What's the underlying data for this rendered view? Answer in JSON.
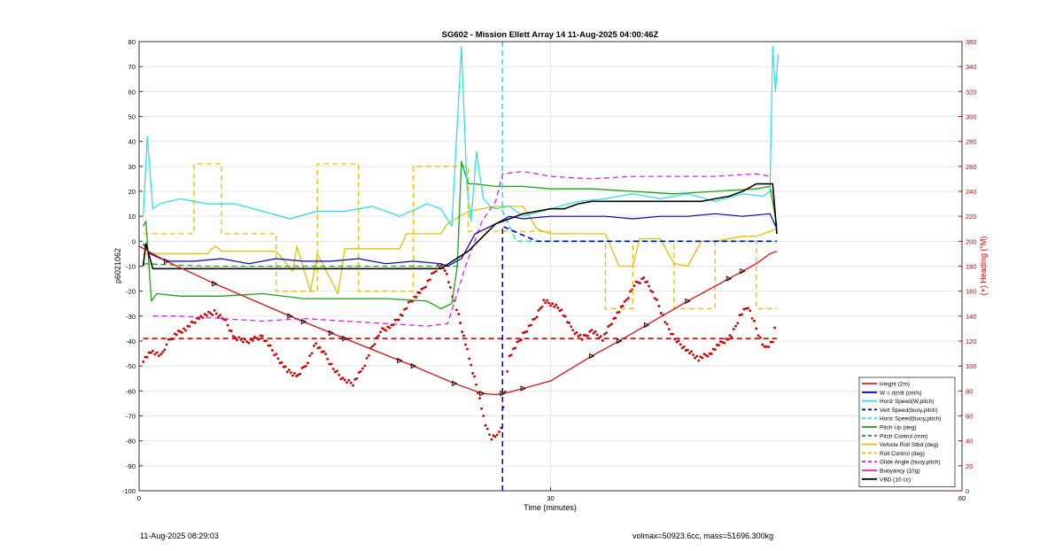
{
  "footer": {
    "timestamp": "11-Aug-2025 08:29:03",
    "mass_info": "volmax=50923.6cc, mass=51696.300kg"
  },
  "chart_data": {
    "type": "line",
    "title": "SG602 - Mission Ellett Array 14 11-Aug-2025 04:00:46Z",
    "xlabel": "Time (minutes)",
    "ylabel": "p6021062",
    "y2label": "(+) Heading (°M)",
    "xlim": [
      0,
      60
    ],
    "ylim": [
      -100,
      80
    ],
    "y2lim": [
      0,
      360
    ],
    "xticks": [
      "0",
      "30",
      "60"
    ],
    "yticks": [
      "-100",
      "-90",
      "-80",
      "-70",
      "-60",
      "-50",
      "-40",
      "-30",
      "-20",
      "-10",
      "0",
      "10",
      "20",
      "30",
      "40",
      "50",
      "60",
      "70",
      "80"
    ],
    "y2ticks": [
      "0",
      "20",
      "40",
      "60",
      "80",
      "100",
      "120",
      "140",
      "160",
      "180",
      "200",
      "220",
      "240",
      "260",
      "280",
      "300",
      "320",
      "340",
      "360"
    ],
    "grid": true,
    "legend_position": "bottom-right",
    "colors": {
      "height": "#d62020",
      "w": "#0000bb",
      "horiz": "#22e0e0",
      "pitch": "#1aa01a",
      "roll": "#e6c000",
      "glide": "#e020e0",
      "vbd": "#000000",
      "heading": "#cc0000",
      "axis2": "#cc0000"
    },
    "series": [
      {
        "name": "Height (2m)",
        "key": "height",
        "style": "solid",
        "x": [
          0,
          2,
          5.5,
          11,
          15,
          20,
          23,
          25,
          26,
          27,
          28,
          30,
          33,
          35,
          40,
          45,
          46,
          46.5
        ],
        "y": [
          -2,
          -8,
          -17,
          -30,
          -39,
          -50,
          -57,
          -61,
          -61.5,
          -60.5,
          -59,
          -56,
          -46,
          -40,
          -24,
          -9,
          -5,
          -4
        ]
      },
      {
        "name": "W = dz/dt (cm/s)",
        "key": "w",
        "style": "solid",
        "x": [
          0.3,
          0.8,
          2,
          4,
          6,
          8,
          10,
          12,
          14,
          16,
          18,
          20,
          22,
          22.5,
          23.5,
          24.5,
          26,
          27,
          28,
          30,
          32,
          34,
          36,
          38,
          40,
          42,
          44,
          46,
          46.5
        ],
        "y": [
          -1,
          -5,
          -8,
          -8,
          -7,
          -9,
          -7,
          -8,
          -8,
          -7,
          -9,
          -8,
          -9,
          -10,
          -7,
          3,
          7,
          10,
          9,
          10,
          10,
          10,
          9,
          10,
          10,
          11,
          10,
          11,
          5
        ]
      },
      {
        "name": "Horiz Speed(W,pitch)",
        "key": "horiz",
        "style": "solid",
        "x": [
          0.3,
          0.6,
          1.0,
          1.5,
          3,
          5,
          7,
          9,
          11,
          13,
          15,
          17,
          19,
          21,
          22,
          22.8,
          23.5,
          23.9,
          24.2,
          24.6,
          25.1,
          25.6,
          26,
          27,
          28,
          30,
          32,
          34,
          36,
          38,
          40,
          42,
          44,
          45.5,
          46,
          46.2,
          46.4,
          46.6
        ],
        "y": [
          10,
          42,
          13,
          15,
          17,
          15,
          15,
          12,
          9,
          12,
          12,
          14,
          10,
          15,
          13,
          6,
          78,
          22,
          8,
          36,
          17,
          14,
          13,
          14,
          10,
          13,
          16,
          17,
          19,
          17,
          19,
          16,
          19,
          18,
          20,
          78,
          60,
          75
        ]
      },
      {
        "name": "Vert Speed(buoy,pitch)",
        "key": "vert",
        "style": "dashed",
        "x": [
          26.5,
          26.5,
          26.5,
          29,
          40,
          46.5
        ],
        "y": [
          -100,
          -30,
          6,
          0,
          0,
          0
        ]
      },
      {
        "name": "Horiz Speed(buoy,pitch)",
        "key": "horizbuoy",
        "style": "dashed",
        "x": [
          26.5,
          26.5,
          27.5,
          40,
          46.5
        ],
        "y": [
          80,
          12,
          0,
          0,
          0
        ]
      },
      {
        "name": "Pitch Up (deg)",
        "key": "pitch",
        "style": "solid",
        "x": [
          0.3,
          0.5,
          0.9,
          1.3,
          3,
          6,
          9,
          12,
          15,
          18,
          21,
          22,
          22.8,
          23.2,
          23.5,
          24,
          24.5,
          26,
          28,
          30,
          33,
          36,
          39,
          42,
          45,
          46,
          46.5
        ],
        "y": [
          6,
          8,
          -24,
          -21,
          -22,
          -22,
          -21,
          -23,
          -23,
          -23,
          -24,
          -27,
          -25,
          -10,
          32,
          23,
          23,
          22,
          22,
          21,
          21,
          20,
          19,
          20,
          21,
          22,
          6
        ]
      },
      {
        "name": "Pitch Control (mm)",
        "key": "pitchctl",
        "style": "dashed",
        "x": [
          0.3,
          5,
          10,
          15,
          20,
          22,
          23.5
        ],
        "y": [
          -9,
          -10,
          -10,
          -10,
          -10,
          -10,
          -10
        ]
      },
      {
        "name": "Vehicle Roll Stbd (deg)",
        "key": "rollv",
        "style": "solid",
        "x": [
          0.3,
          2,
          5,
          5.3,
          5.6,
          6,
          10,
          11.2,
          11.5,
          12.5,
          13,
          14.5,
          15,
          17,
          19,
          19.5,
          22,
          22.5,
          24,
          26,
          28,
          29,
          30,
          33,
          34,
          35,
          36,
          36.5,
          38,
          39,
          40,
          41,
          42,
          44,
          45,
          46,
          46.5
        ],
        "y": [
          -5,
          -5,
          -5,
          -3,
          -2,
          -4,
          -4,
          -12,
          -2,
          -20,
          -5,
          -21,
          -3,
          -3,
          -3,
          3,
          3,
          7,
          12,
          14,
          14,
          5,
          3,
          3,
          3,
          -10,
          -10,
          1,
          1,
          -9,
          -10,
          0,
          0,
          2,
          2,
          4,
          5
        ]
      },
      {
        "name": "Roll Control (deg)",
        "key": "rollc",
        "style": "dashed",
        "x": [
          0.3,
          4,
          4,
          6,
          6,
          10,
          10,
          13,
          13,
          16,
          16,
          20,
          20,
          24,
          24,
          30,
          30,
          34,
          34,
          36,
          36,
          39,
          39,
          42,
          42,
          45,
          45,
          46.5
        ],
        "y": [
          3,
          3,
          31,
          31,
          3,
          3,
          -20,
          -20,
          31,
          31,
          -20,
          -20,
          30,
          30,
          4,
          4,
          0,
          0,
          -27,
          -27,
          0,
          0,
          -27,
          -27,
          0,
          0,
          -27,
          -27
        ]
      },
      {
        "name": "Glide Angle (buoy,pitch)",
        "key": "glide",
        "style": "dashed",
        "x": [
          1,
          3,
          6,
          9,
          12,
          15,
          18,
          21,
          22.5,
          23.8,
          25,
          26,
          26.5,
          28,
          30,
          33,
          36,
          39,
          42,
          45,
          46
        ],
        "y": [
          -30,
          -30,
          -31,
          -32,
          -31,
          -32,
          -33,
          -34,
          -33,
          -10,
          8,
          16,
          27,
          28,
          26,
          25,
          26,
          26,
          26,
          27,
          26
        ]
      },
      {
        "name": "Buoyancy (10g)",
        "key": "buoy",
        "style": "solid",
        "x": [],
        "y": []
      },
      {
        "name": "VBD (10 cc)",
        "key": "vbd",
        "style": "solid",
        "x": [
          0.3,
          0.5,
          1,
          6,
          12,
          18,
          22,
          24,
          26,
          27,
          28,
          29,
          30,
          31,
          32,
          33,
          35,
          38,
          41,
          42,
          43,
          44,
          45,
          46.2,
          46.5
        ],
        "y": [
          -10,
          -1,
          -11,
          -11,
          -11,
          -11,
          -11,
          -4,
          7,
          9,
          11,
          12,
          13,
          13,
          15,
          16,
          16,
          16,
          16,
          17,
          18,
          20,
          23,
          23,
          3
        ]
      }
    ],
    "heading_threshold": {
      "y2": 122,
      "x_start": 0.3,
      "x_end": 46.5
    },
    "heading_points": [
      [
        0.3,
        105
      ],
      [
        1,
        112
      ],
      [
        1.6,
        108
      ],
      [
        2,
        118
      ],
      [
        2.6,
        125
      ],
      [
        3.4,
        130
      ],
      [
        4.5,
        140
      ],
      [
        5.5,
        143
      ],
      [
        6.2,
        138
      ],
      [
        7,
        122
      ],
      [
        8,
        120
      ],
      [
        9,
        124
      ],
      [
        10,
        108
      ],
      [
        10.8,
        96
      ],
      [
        11.6,
        92
      ],
      [
        12.3,
        104
      ],
      [
        12.9,
        118
      ],
      [
        13.6,
        108
      ],
      [
        14.3,
        96
      ],
      [
        15,
        88
      ],
      [
        15.6,
        86
      ],
      [
        16.3,
        98
      ],
      [
        16.9,
        113
      ],
      [
        17.6,
        128
      ],
      [
        18.4,
        132
      ],
      [
        19.2,
        142
      ],
      [
        19.8,
        152
      ],
      [
        20.6,
        160
      ],
      [
        21.2,
        170
      ],
      [
        21.8,
        180
      ],
      [
        22.3,
        178
      ],
      [
        22.7,
        163
      ],
      [
        23.3,
        140
      ],
      [
        23.8,
        118
      ],
      [
        24.2,
        100
      ],
      [
        24.7,
        80
      ],
      [
        25.1,
        60
      ],
      [
        25.4,
        48
      ],
      [
        25.7,
        42
      ],
      [
        26.1,
        44
      ],
      [
        26.4,
        52
      ],
      [
        27,
        108
      ],
      [
        28,
        125
      ],
      [
        29,
        140
      ],
      [
        29.5,
        152
      ],
      [
        30,
        150
      ],
      [
        30.8,
        145
      ],
      [
        31.5,
        130
      ],
      [
        32.3,
        122
      ],
      [
        33,
        128
      ],
      [
        33.8,
        122
      ],
      [
        34.6,
        138
      ],
      [
        35.4,
        150
      ],
      [
        36.1,
        165
      ],
      [
        36.8,
        170
      ],
      [
        37.3,
        162
      ],
      [
        37.9,
        148
      ],
      [
        38.5,
        132
      ],
      [
        39.2,
        120
      ],
      [
        40,
        112
      ],
      [
        40.8,
        106
      ],
      [
        41.6,
        110
      ],
      [
        42.4,
        118
      ],
      [
        43.2,
        124
      ],
      [
        43.8,
        140
      ],
      [
        44.4,
        148
      ],
      [
        45,
        130
      ],
      [
        45.6,
        114
      ],
      [
        46.2,
        120
      ],
      [
        46.5,
        138
      ]
    ],
    "height_markers_x": [
      2,
      5.5,
      11,
      12,
      14,
      15,
      19,
      20,
      23,
      25,
      26.5,
      28,
      33,
      35,
      37,
      40,
      43,
      44
    ]
  }
}
